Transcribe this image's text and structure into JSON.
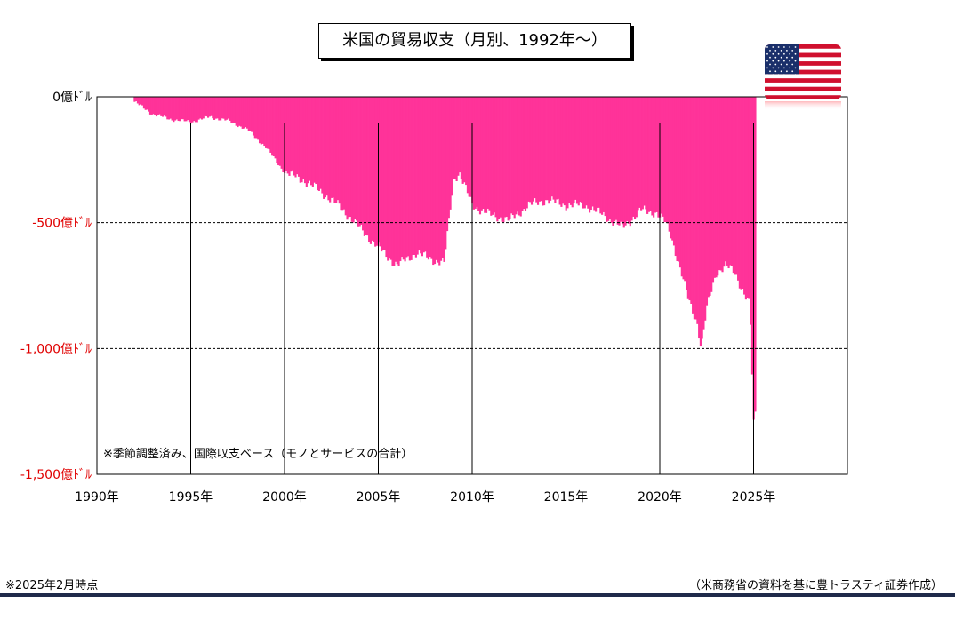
{
  "chart_data": {
    "type": "bar",
    "title": "米国の貿易収支（月別、1992年～）",
    "xlabel": "",
    "ylabel": "",
    "x_range": [
      1990,
      2030
    ],
    "ylim": [
      -1500,
      0
    ],
    "y_ticks": [
      {
        "value": 0,
        "label": "0億ﾄﾞﾙ",
        "color": "#000000"
      },
      {
        "value": -500,
        "label": "-500億ﾄﾞﾙ",
        "color": "#e00000"
      },
      {
        "value": -1000,
        "label": "-1,000億ﾄﾞﾙ",
        "color": "#e00000"
      },
      {
        "value": -1500,
        "label": "-1,500億ﾄﾞﾙ",
        "color": "#e00000"
      }
    ],
    "x_ticks": [
      {
        "value": 1990,
        "label": "1990年"
      },
      {
        "value": 1995,
        "label": "1995年"
      },
      {
        "value": 2000,
        "label": "2000年"
      },
      {
        "value": 2005,
        "label": "2005年"
      },
      {
        "value": 2010,
        "label": "2010年"
      },
      {
        "value": 2015,
        "label": "2015年"
      },
      {
        "value": 2020,
        "label": "2020年"
      },
      {
        "value": 2025,
        "label": "2025年"
      }
    ],
    "grid": true,
    "bar_color": "#ff3399",
    "annotation": "※季節調整済み、国際収支ベース（モノとサービスの合計）",
    "flag_icon": "us-flag-icon",
    "series": [
      {
        "points": [
          [
            1992.0,
            -20
          ],
          [
            1993.0,
            -70
          ],
          [
            1994.0,
            -90
          ],
          [
            1995.0,
            -100
          ],
          [
            1996.0,
            -80
          ],
          [
            1997.0,
            -95
          ],
          [
            1998.0,
            -130
          ],
          [
            1999.0,
            -200
          ],
          [
            2000.0,
            -300
          ],
          [
            2001.0,
            -330
          ],
          [
            2002.0,
            -380
          ],
          [
            2003.0,
            -440
          ],
          [
            2004.0,
            -520
          ],
          [
            2005.0,
            -600
          ],
          [
            2006.0,
            -670
          ],
          [
            2007.0,
            -620
          ],
          [
            2008.0,
            -650
          ],
          [
            2008.5,
            -660
          ],
          [
            2009.0,
            -330
          ],
          [
            2009.3,
            -300
          ],
          [
            2010.0,
            -430
          ],
          [
            2011.0,
            -470
          ],
          [
            2012.0,
            -490
          ],
          [
            2013.0,
            -430
          ],
          [
            2014.0,
            -410
          ],
          [
            2015.0,
            -430
          ],
          [
            2016.0,
            -430
          ],
          [
            2017.0,
            -470
          ],
          [
            2018.0,
            -520
          ],
          [
            2019.0,
            -450
          ],
          [
            2019.8,
            -460
          ],
          [
            2020.3,
            -500
          ],
          [
            2020.6,
            -550
          ],
          [
            2021.0,
            -660
          ],
          [
            2021.5,
            -800
          ],
          [
            2022.0,
            -900
          ],
          [
            2022.2,
            -1000
          ],
          [
            2022.5,
            -840
          ],
          [
            2023.0,
            -700
          ],
          [
            2023.5,
            -670
          ],
          [
            2024.0,
            -700
          ],
          [
            2024.5,
            -780
          ],
          [
            2024.8,
            -830
          ],
          [
            2025.0,
            -1300
          ],
          [
            2025.15,
            -1230
          ]
        ]
      }
    ]
  },
  "footnotes": {
    "as_of": "※2025年2月時点",
    "source": "（米商務省の資料を基に豊トラスティ証券作成）"
  }
}
